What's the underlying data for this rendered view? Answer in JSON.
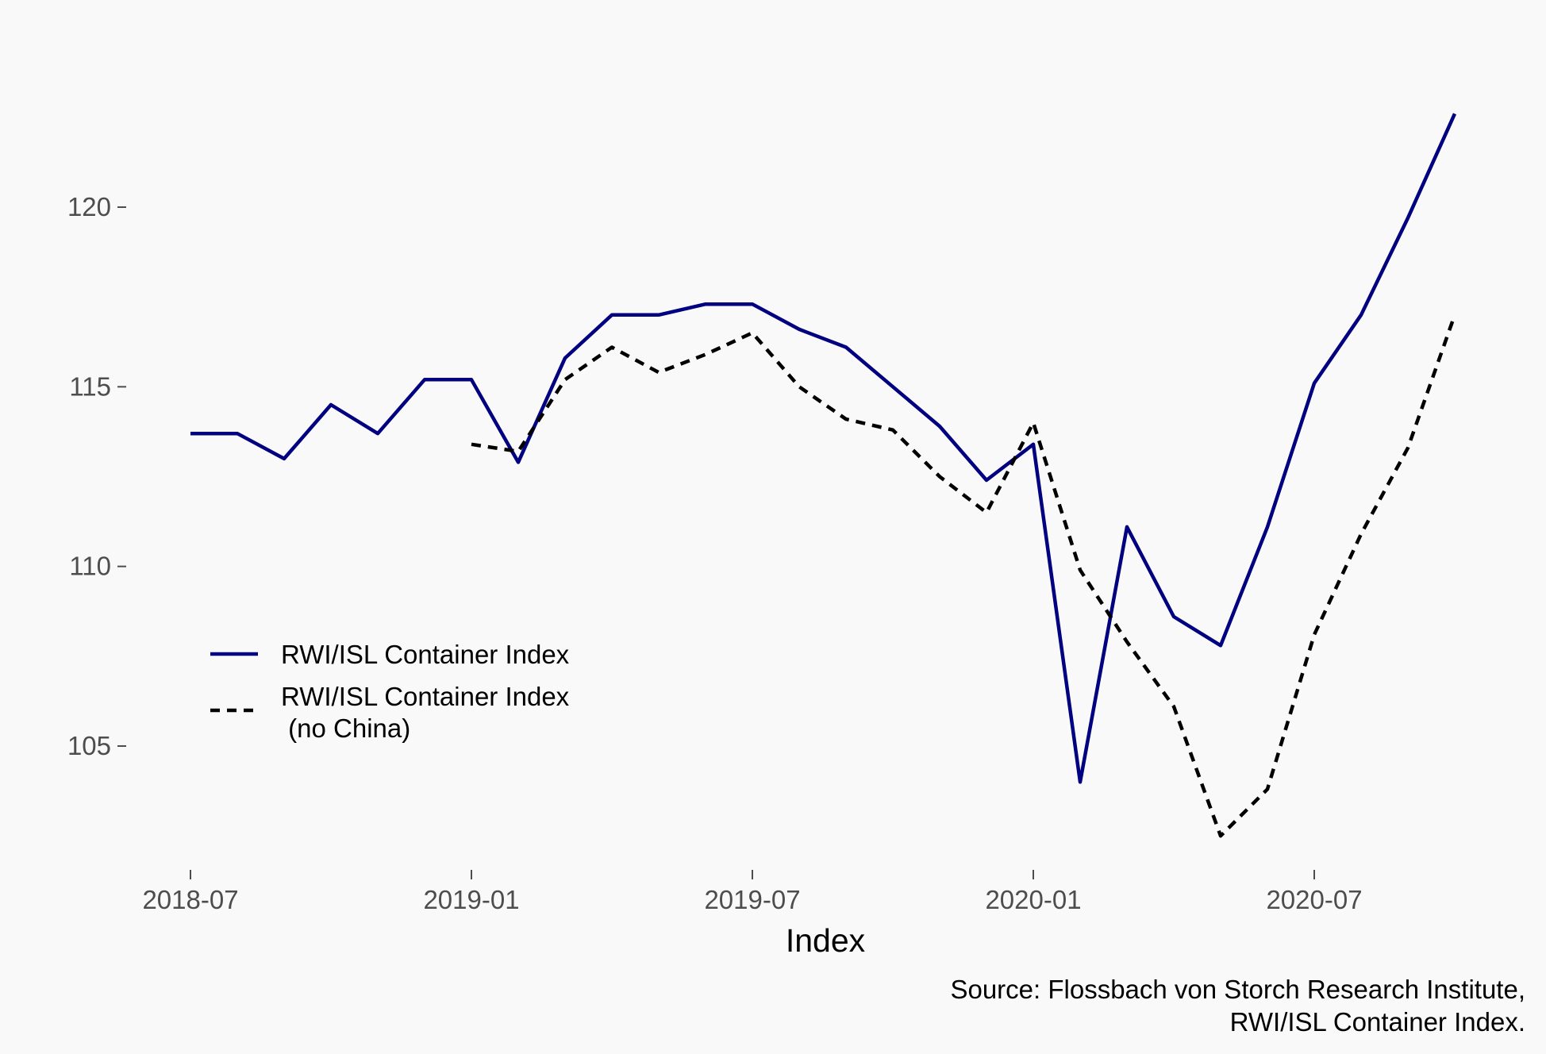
{
  "chart_data": {
    "type": "line",
    "title": "",
    "xlabel": "Index",
    "ylabel": "",
    "caption": [
      "Source: Flossbach von Storch Research Institute,",
      "RWI/ISL Container Index."
    ],
    "x_ticks": [
      "2018-07",
      "2019-01",
      "2019-07",
      "2020-01",
      "2020-07"
    ],
    "y_ticks": [
      105,
      110,
      115,
      120
    ],
    "ylim": [
      101.7,
      123.5
    ],
    "grid": false,
    "legend_position": "left",
    "series": [
      {
        "name": "RWI/ISL Container Index",
        "style": "solid",
        "color": "#000080",
        "points": [
          {
            "x": "2018-07",
            "y": 113.7
          },
          {
            "x": "2018-08",
            "y": 113.7
          },
          {
            "x": "2018-09",
            "y": 113.0
          },
          {
            "x": "2018-10",
            "y": 114.5
          },
          {
            "x": "2018-11",
            "y": 113.7
          },
          {
            "x": "2018-12",
            "y": 115.2
          },
          {
            "x": "2019-01",
            "y": 115.2
          },
          {
            "x": "2019-02",
            "y": 112.9
          },
          {
            "x": "2019-03",
            "y": 115.8
          },
          {
            "x": "2019-04",
            "y": 117.0
          },
          {
            "x": "2019-05",
            "y": 117.0
          },
          {
            "x": "2019-06",
            "y": 117.3
          },
          {
            "x": "2019-07",
            "y": 117.3
          },
          {
            "x": "2019-08",
            "y": 116.6
          },
          {
            "x": "2019-09",
            "y": 116.1
          },
          {
            "x": "2019-10",
            "y": 115.0
          },
          {
            "x": "2019-11",
            "y": 113.9
          },
          {
            "x": "2019-12",
            "y": 112.4
          },
          {
            "x": "2020-01",
            "y": 113.4
          },
          {
            "x": "2020-02",
            "y": 104.0
          },
          {
            "x": "2020-03",
            "y": 111.1
          },
          {
            "x": "2020-04",
            "y": 108.6
          },
          {
            "x": "2020-05",
            "y": 107.8
          },
          {
            "x": "2020-06",
            "y": 111.1
          },
          {
            "x": "2020-07",
            "y": 115.1
          },
          {
            "x": "2020-08",
            "y": 117.0
          },
          {
            "x": "2020-09",
            "y": 119.7
          },
          {
            "x": "2020-10",
            "y": 122.6
          }
        ]
      },
      {
        "name": "RWI/ISL Container Index\n (no China)",
        "style": "dashed",
        "color": "#000000",
        "points": [
          {
            "x": "2019-01",
            "y": 113.4
          },
          {
            "x": "2019-02",
            "y": 113.2
          },
          {
            "x": "2019-03",
            "y": 115.2
          },
          {
            "x": "2019-04",
            "y": 116.1
          },
          {
            "x": "2019-05",
            "y": 115.4
          },
          {
            "x": "2019-06",
            "y": 115.9
          },
          {
            "x": "2019-07",
            "y": 116.5
          },
          {
            "x": "2019-08",
            "y": 115.0
          },
          {
            "x": "2019-09",
            "y": 114.1
          },
          {
            "x": "2019-10",
            "y": 113.8
          },
          {
            "x": "2019-11",
            "y": 112.5
          },
          {
            "x": "2019-12",
            "y": 111.5
          },
          {
            "x": "2020-01",
            "y": 114.0
          },
          {
            "x": "2020-02",
            "y": 109.9
          },
          {
            "x": "2020-03",
            "y": 107.9
          },
          {
            "x": "2020-04",
            "y": 106.1
          },
          {
            "x": "2020-05",
            "y": 102.5
          },
          {
            "x": "2020-06",
            "y": 103.8
          },
          {
            "x": "2020-07",
            "y": 108.1
          },
          {
            "x": "2020-08",
            "y": 110.9
          },
          {
            "x": "2020-09",
            "y": 113.3
          },
          {
            "x": "2020-10",
            "y": 117.0
          }
        ]
      }
    ]
  }
}
